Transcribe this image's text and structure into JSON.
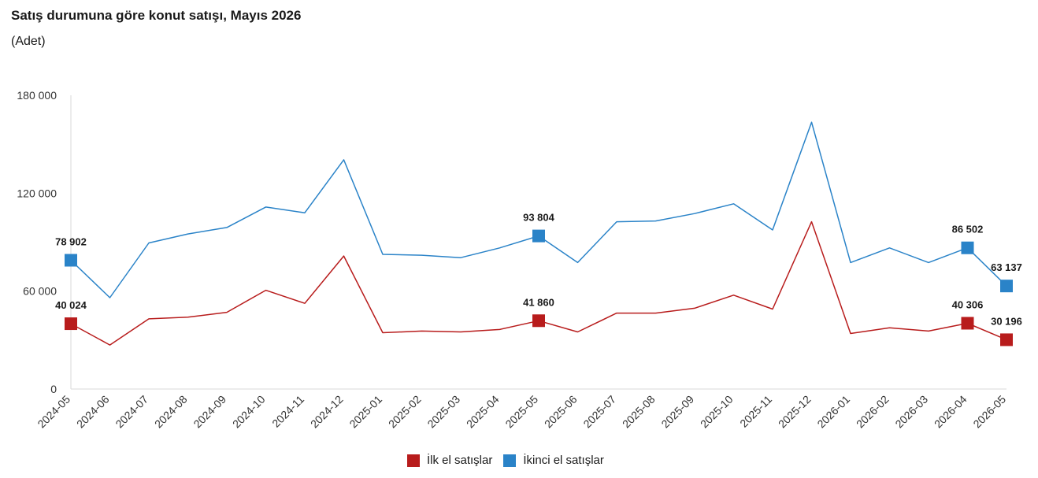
{
  "header": {
    "title": "Satış durumuna göre konut satışı, Mayıs 2026",
    "subtitle": "(Adet)"
  },
  "chart_data": {
    "type": "line",
    "title": "Satış durumuna göre konut satışı, Mayıs 2026",
    "subtitle": "(Adet)",
    "x": [
      "2024-05",
      "2024-06",
      "2024-07",
      "2024-08",
      "2024-09",
      "2024-10",
      "2024-11",
      "2024-12",
      "2025-01",
      "2025-02",
      "2025-03",
      "2025-04",
      "2025-05",
      "2025-06",
      "2025-07",
      "2025-08",
      "2025-09",
      "2025-10",
      "2025-11",
      "2025-12",
      "2026-01",
      "2026-02",
      "2026-03",
      "2026-04",
      "2026-05"
    ],
    "ylim": [
      0,
      180000
    ],
    "yticks": [
      0,
      60000,
      120000,
      180000
    ],
    "ytick_labels": [
      "0",
      "60 000",
      "120 000",
      "180 000"
    ],
    "grid": false,
    "legend_position": "bottom",
    "series": [
      {
        "name": "İlk el satışlar",
        "color": "#b81c1c",
        "values": [
          40024,
          27000,
          43000,
          44000,
          47000,
          60500,
          52500,
          81500,
          34500,
          35500,
          35000,
          36500,
          41860,
          35000,
          46500,
          46500,
          49500,
          57500,
          49000,
          102500,
          34000,
          37500,
          35500,
          40306,
          30196
        ],
        "labeled_points": [
          {
            "index": 0,
            "label": "40 024"
          },
          {
            "index": 12,
            "label": "41 860"
          },
          {
            "index": 23,
            "label": "40 306"
          },
          {
            "index": 24,
            "label": "30 196"
          }
        ]
      },
      {
        "name": "İkinci el satışlar",
        "color": "#2a83c8",
        "values": [
          78902,
          56000,
          89500,
          95000,
          99000,
          111500,
          108000,
          140500,
          82500,
          82000,
          80500,
          86500,
          93804,
          77500,
          102500,
          103000,
          107500,
          113500,
          97500,
          163500,
          77500,
          86500,
          77500,
          86502,
          63137
        ],
        "labeled_points": [
          {
            "index": 0,
            "label": "78 902"
          },
          {
            "index": 12,
            "label": "93 804"
          },
          {
            "index": 23,
            "label": "86 502"
          },
          {
            "index": 24,
            "label": "63 137"
          }
        ]
      }
    ]
  }
}
